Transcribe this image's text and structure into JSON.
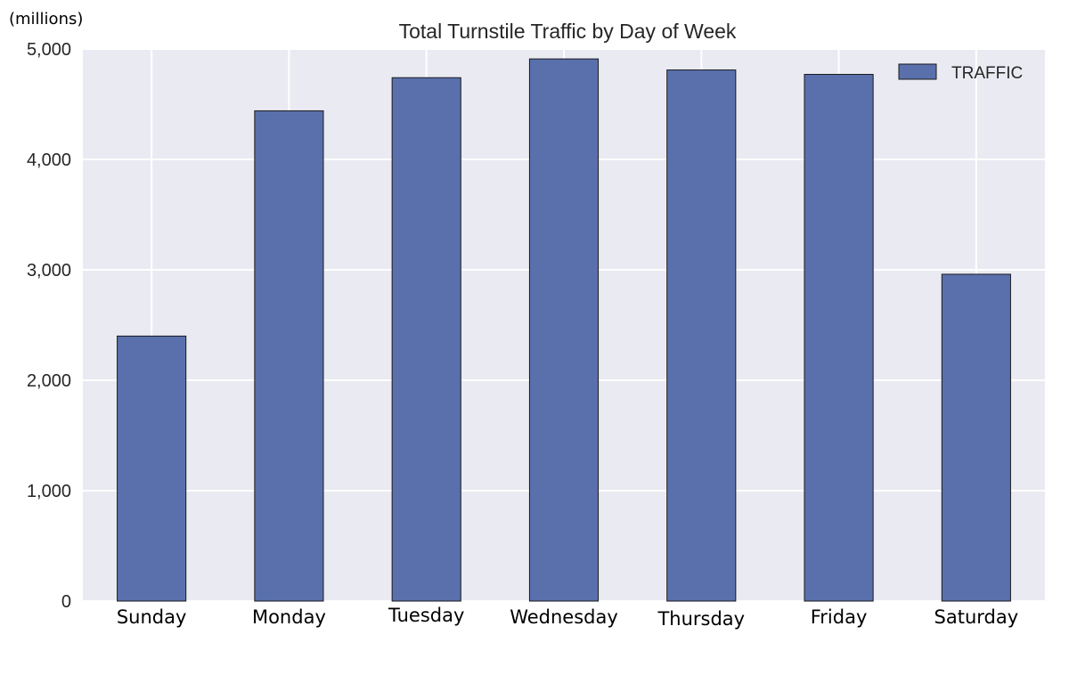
{
  "chart_data": {
    "type": "bar",
    "title": "Total Turnstile Traffic by Day of Week",
    "unit_label": "(millions)",
    "xlabel": "",
    "ylabel": "",
    "categories": [
      "Sunday",
      "Monday",
      "Tuesday",
      "Wednesday",
      "Thursday",
      "Friday",
      "Saturday"
    ],
    "series": [
      {
        "name": "TRAFFIC",
        "values": [
          2400,
          4440,
          4740,
          4910,
          4810,
          4770,
          2960
        ],
        "color": "#5a70ad"
      }
    ],
    "ylim": [
      0,
      5000
    ],
    "yticks": [
      0,
      1000,
      2000,
      3000,
      4000,
      5000
    ],
    "ytick_labels": [
      "0",
      "1,000",
      "2,000",
      "3,000",
      "4,000",
      "5,000"
    ],
    "grid": true,
    "legend_position": "top-right",
    "background_color": "#eaeaf2",
    "grid_color": "#ffffff"
  }
}
